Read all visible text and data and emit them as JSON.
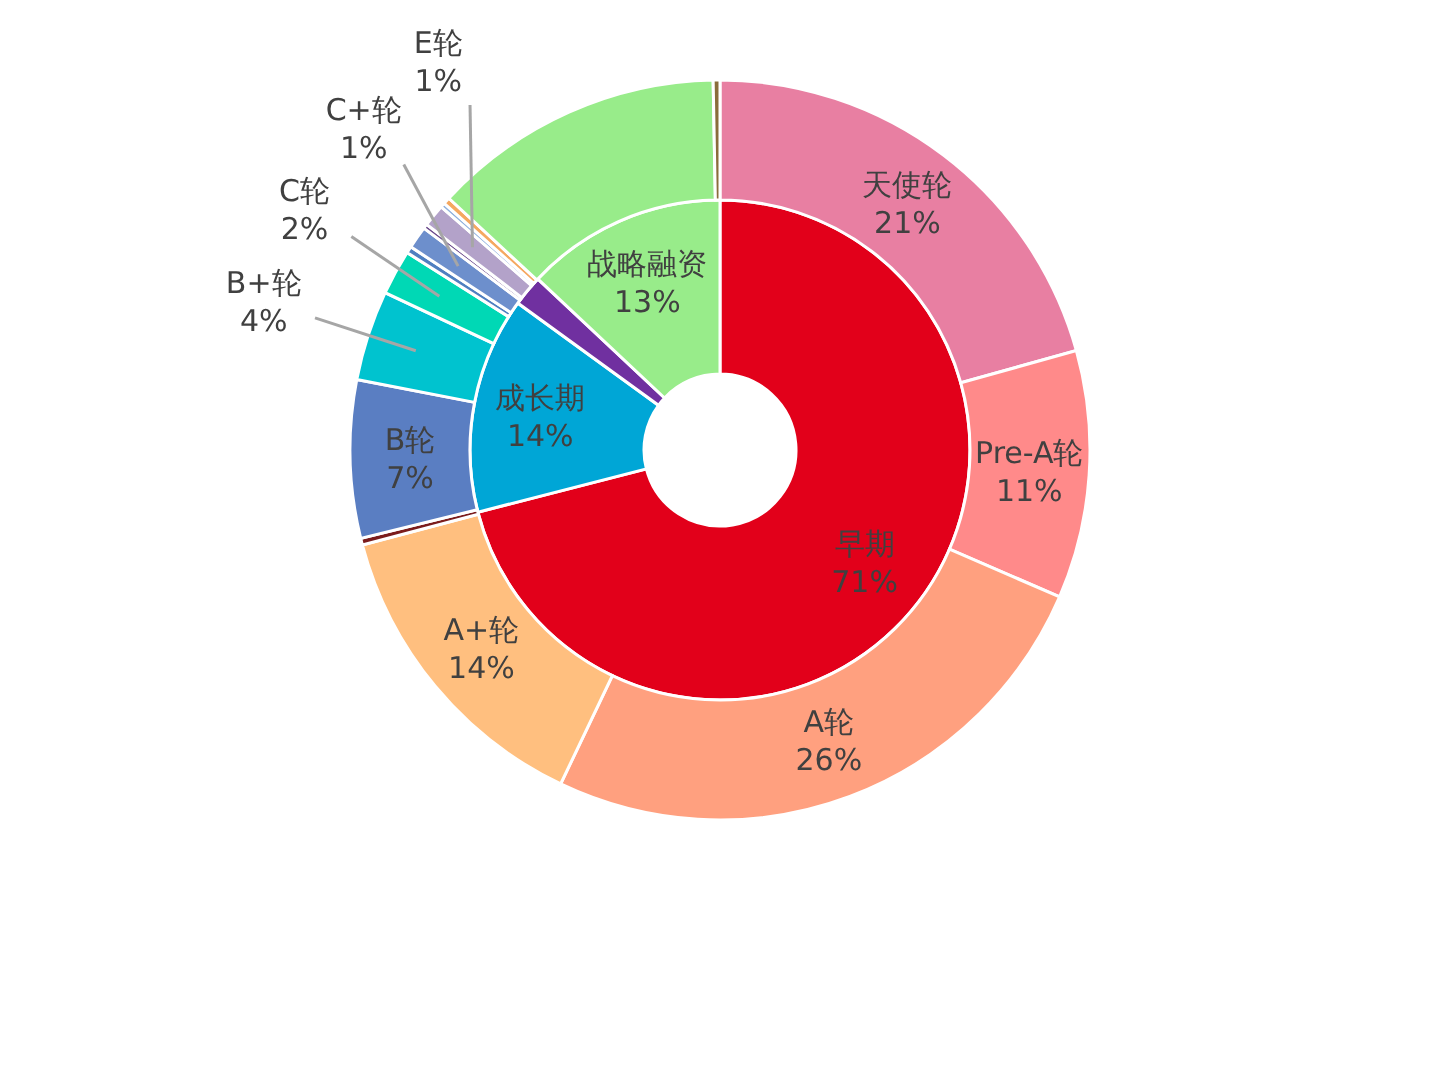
{
  "chart_data": [
    {
      "type": "donut",
      "categories": [
        "早期",
        "成长期",
        null,
        "战略融资"
      ],
      "values": [
        71,
        14,
        2,
        13
      ],
      "colors": [
        "#e2001a",
        "#00a6d6",
        "#7030a0",
        "#98ec8a"
      ],
      "value_labels": [
        "71%",
        "14%",
        null,
        "13%"
      ]
    },
    {
      "type": "donut",
      "categories": [
        "天使轮",
        "Pre-A轮",
        "A轮",
        "A+轮",
        null,
        "B轮",
        "B+轮",
        "C轮",
        null,
        "C+轮",
        null,
        "E轮",
        null,
        null,
        null,
        null
      ],
      "values": [
        21,
        11,
        26,
        14,
        0.3,
        7,
        4,
        2,
        0.3,
        1,
        0.2,
        1,
        0.2,
        0.3,
        13,
        0.3
      ],
      "colors": [
        "#e87fa2",
        "#ff8a8a",
        "#ffa07f",
        "#ffbf7f",
        "#7b1c1c",
        "#5a7ec2",
        "#00c3cf",
        "#00d8b5",
        "#4f7fc0",
        "#6d8fcc",
        "#6b4a8c",
        "#b3a2c9",
        "#8fb0dd",
        "#f5a860",
        "#98ec8a",
        "#8a6d3b"
      ],
      "value_labels": [
        "21%",
        "11%",
        "26%",
        "14%",
        null,
        "7%",
        "4%",
        "2%",
        null,
        "1%",
        null,
        "1%",
        null,
        null,
        null,
        null
      ]
    }
  ]
}
